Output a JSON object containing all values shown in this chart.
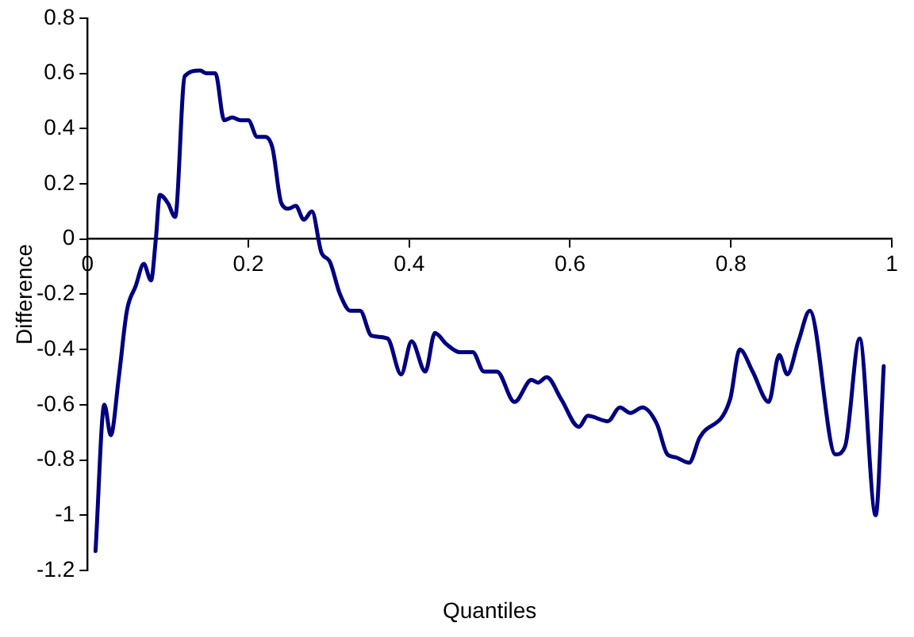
{
  "chart_data": {
    "type": "line",
    "xlabel": "Quantiles",
    "ylabel": "Difference",
    "x": [
      0.01,
      0.021,
      0.029,
      0.039,
      0.049,
      0.06,
      0.07,
      0.079,
      0.085,
      0.09,
      0.1,
      0.109,
      0.121,
      0.14,
      0.148,
      0.159,
      0.17,
      0.18,
      0.19,
      0.2,
      0.211,
      0.221,
      0.23,
      0.241,
      0.25,
      0.259,
      0.269,
      0.279,
      0.291,
      0.301,
      0.314,
      0.327,
      0.339,
      0.353,
      0.373,
      0.39,
      0.403,
      0.42,
      0.432,
      0.446,
      0.463,
      0.479,
      0.493,
      0.509,
      0.531,
      0.552,
      0.56,
      0.571,
      0.589,
      0.611,
      0.622,
      0.647,
      0.662,
      0.675,
      0.69,
      0.708,
      0.721,
      0.731,
      0.748,
      0.761,
      0.799,
      0.811,
      0.827,
      0.847,
      0.86,
      0.87,
      0.884,
      0.898,
      0.93,
      0.942,
      0.96,
      0.98,
      0.99
    ],
    "series": [
      {
        "color": "#000080",
        "values": [
          -1.13,
          -0.6,
          -0.71,
          -0.5,
          -0.26,
          -0.17,
          -0.09,
          -0.15,
          0.0,
          0.16,
          0.13,
          0.08,
          0.59,
          0.61,
          0.6,
          0.6,
          0.43,
          0.44,
          0.43,
          0.43,
          0.37,
          0.37,
          0.33,
          0.13,
          0.11,
          0.12,
          0.07,
          0.1,
          -0.05,
          -0.08,
          -0.2,
          -0.26,
          -0.26,
          -0.35,
          -0.36,
          -0.49,
          -0.37,
          -0.48,
          -0.34,
          -0.38,
          -0.41,
          -0.41,
          -0.48,
          -0.48,
          -0.59,
          -0.51,
          -0.52,
          -0.5,
          -0.58,
          -0.68,
          -0.64,
          -0.66,
          -0.61,
          -0.63,
          -0.61,
          -0.67,
          -0.78,
          -0.79,
          -0.81,
          -0.72,
          -0.58,
          -0.4,
          -0.48,
          -0.59,
          -0.42,
          -0.49,
          -0.37,
          -0.26,
          -0.78,
          -0.75,
          -0.36,
          -1.0,
          -0.46
        ]
      }
    ],
    "xlim": [
      0,
      1
    ],
    "xticks": [
      0,
      0.2,
      0.4,
      0.6,
      0.8,
      1
    ],
    "ylim": [
      -1.2,
      0.8
    ],
    "yticks": [
      -1.2,
      -1,
      -0.8,
      -0.6,
      -0.4,
      -0.2,
      0,
      0.2,
      0.4,
      0.6,
      0.8
    ],
    "grid": false,
    "legend": false,
    "marker": "none",
    "line_style": "solid"
  }
}
